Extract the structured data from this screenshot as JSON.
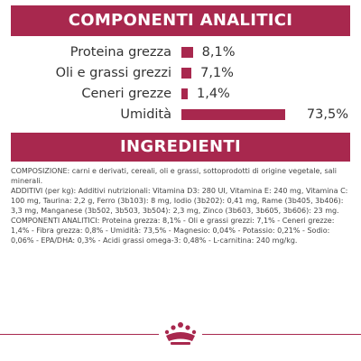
{
  "analytics": {
    "title": "COMPONENTI ANALITICI",
    "rows": [
      {
        "label": "Proteina grezza",
        "value": "8,1%",
        "percent": 8.1
      },
      {
        "label": "Oli e grassi grezzi",
        "value": "7,1%",
        "percent": 7.1
      },
      {
        "label": "Ceneri grezze",
        "value": "1,4%",
        "percent": 1.4
      },
      {
        "label": "Umidità",
        "value": "73,5%",
        "percent": 73.5
      }
    ],
    "bar_color": "#a8284e"
  },
  "ingredients": {
    "title": "INGREDIENTI",
    "composition": "COMPOSIZIONE: carni e derivati, cereali, oli e grassi, sottoprodotti di origine vegetale, sali minerali.",
    "additives": "ADDITIVI (per kg): Additivi nutrizionali: Vitamina D3: 280 UI, Vitamina E: 240 mg, Vitamina C: 100 mg, Taurina: 2,2 g, Ferro (3b103): 8 mg, Iodio (3b202): 0,41 mg, Rame (3b405, 3b406): 3,3 mg, Manganese (3b502, 3b503, 3b504): 2,3 mg, Zinco (3b603, 3b605, 3b606): 23 mg.",
    "analytic_components": "COMPONENTI ANALITICI: Proteina grezza: 8,1% - Oli e grassi grezzi: 7,1% - Ceneri grezze: 1,4% - Fibra grezza: 0,8% - Umidità: 73,5% - Magnesio: 0,04% - Potassio: 0,21% - Sodio: 0,06% - EPA/DHA: 0,3% - Acidi grassi omega-3: 0,48% - L-carnitina: 240 mg/kg."
  },
  "brand": {
    "accent": "#a8284e",
    "logo_icon": "royal-canin-crown-icon"
  }
}
